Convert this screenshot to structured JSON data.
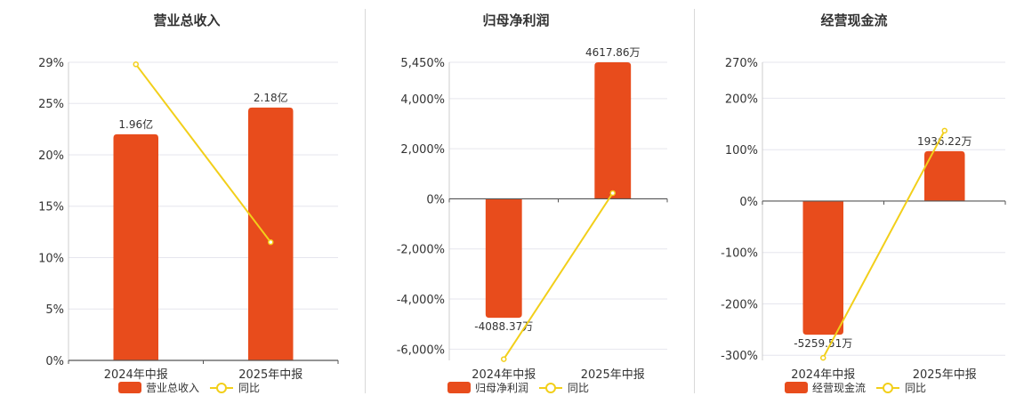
{
  "colors": {
    "bar": "#e84c1c",
    "line": "#f2cf1a",
    "grid": "#e6e6ee",
    "axis": "#555555",
    "text": "#333333"
  },
  "chart_data": [
    {
      "type": "bar",
      "title": "营业总收入",
      "categories": [
        "2024年中报",
        "2025年中报"
      ],
      "ylim": [
        0,
        29
      ],
      "ticks": [
        0,
        5,
        10,
        15,
        20,
        25,
        29
      ],
      "tick_labels": [
        "0%",
        "5%",
        "10%",
        "15%",
        "20%",
        "25%",
        "29%"
      ],
      "series": [
        {
          "name": "营业总收入",
          "kind": "bar",
          "values": [
            22,
            24.6
          ],
          "labels": [
            "1.96亿",
            "2.18亿"
          ]
        },
        {
          "name": "同比",
          "kind": "line",
          "values": [
            28.8,
            11.5
          ]
        }
      ],
      "legend": "bottom"
    },
    {
      "type": "bar",
      "title": "归母净利润",
      "categories": [
        "2024年中报",
        "2025年中报"
      ],
      "ylim": [
        -6450,
        5450
      ],
      "ticks": [
        -6000,
        -4000,
        -2000,
        0,
        2000,
        4000,
        5450
      ],
      "tick_labels": [
        "-6,000%",
        "-4,000%",
        "-2,000%",
        "0%",
        "2,000%",
        "4,000%",
        "5,450%"
      ],
      "series": [
        {
          "name": "归母净利润",
          "kind": "bar",
          "values": [
            -4750,
            5450
          ],
          "labels": [
            "-4088.37万",
            "4617.86万"
          ]
        },
        {
          "name": "同比",
          "kind": "line",
          "values": [
            -6400,
            230
          ]
        }
      ],
      "legend": "bottom"
    },
    {
      "type": "bar",
      "title": "经营现金流",
      "categories": [
        "2024年中报",
        "2025年中报"
      ],
      "ylim": [
        -310,
        270
      ],
      "ticks": [
        -300,
        -200,
        -100,
        0,
        100,
        200,
        270
      ],
      "tick_labels": [
        "-300%",
        "-200%",
        "-100%",
        "0%",
        "100%",
        "200%",
        "270%"
      ],
      "series": [
        {
          "name": "经营现金流",
          "kind": "bar",
          "values": [
            -260,
            97
          ],
          "labels": [
            "-5259.51万",
            "1936.22万"
          ]
        },
        {
          "name": "同比",
          "kind": "line",
          "values": [
            -305,
            137
          ]
        }
      ],
      "legend": "bottom"
    }
  ]
}
